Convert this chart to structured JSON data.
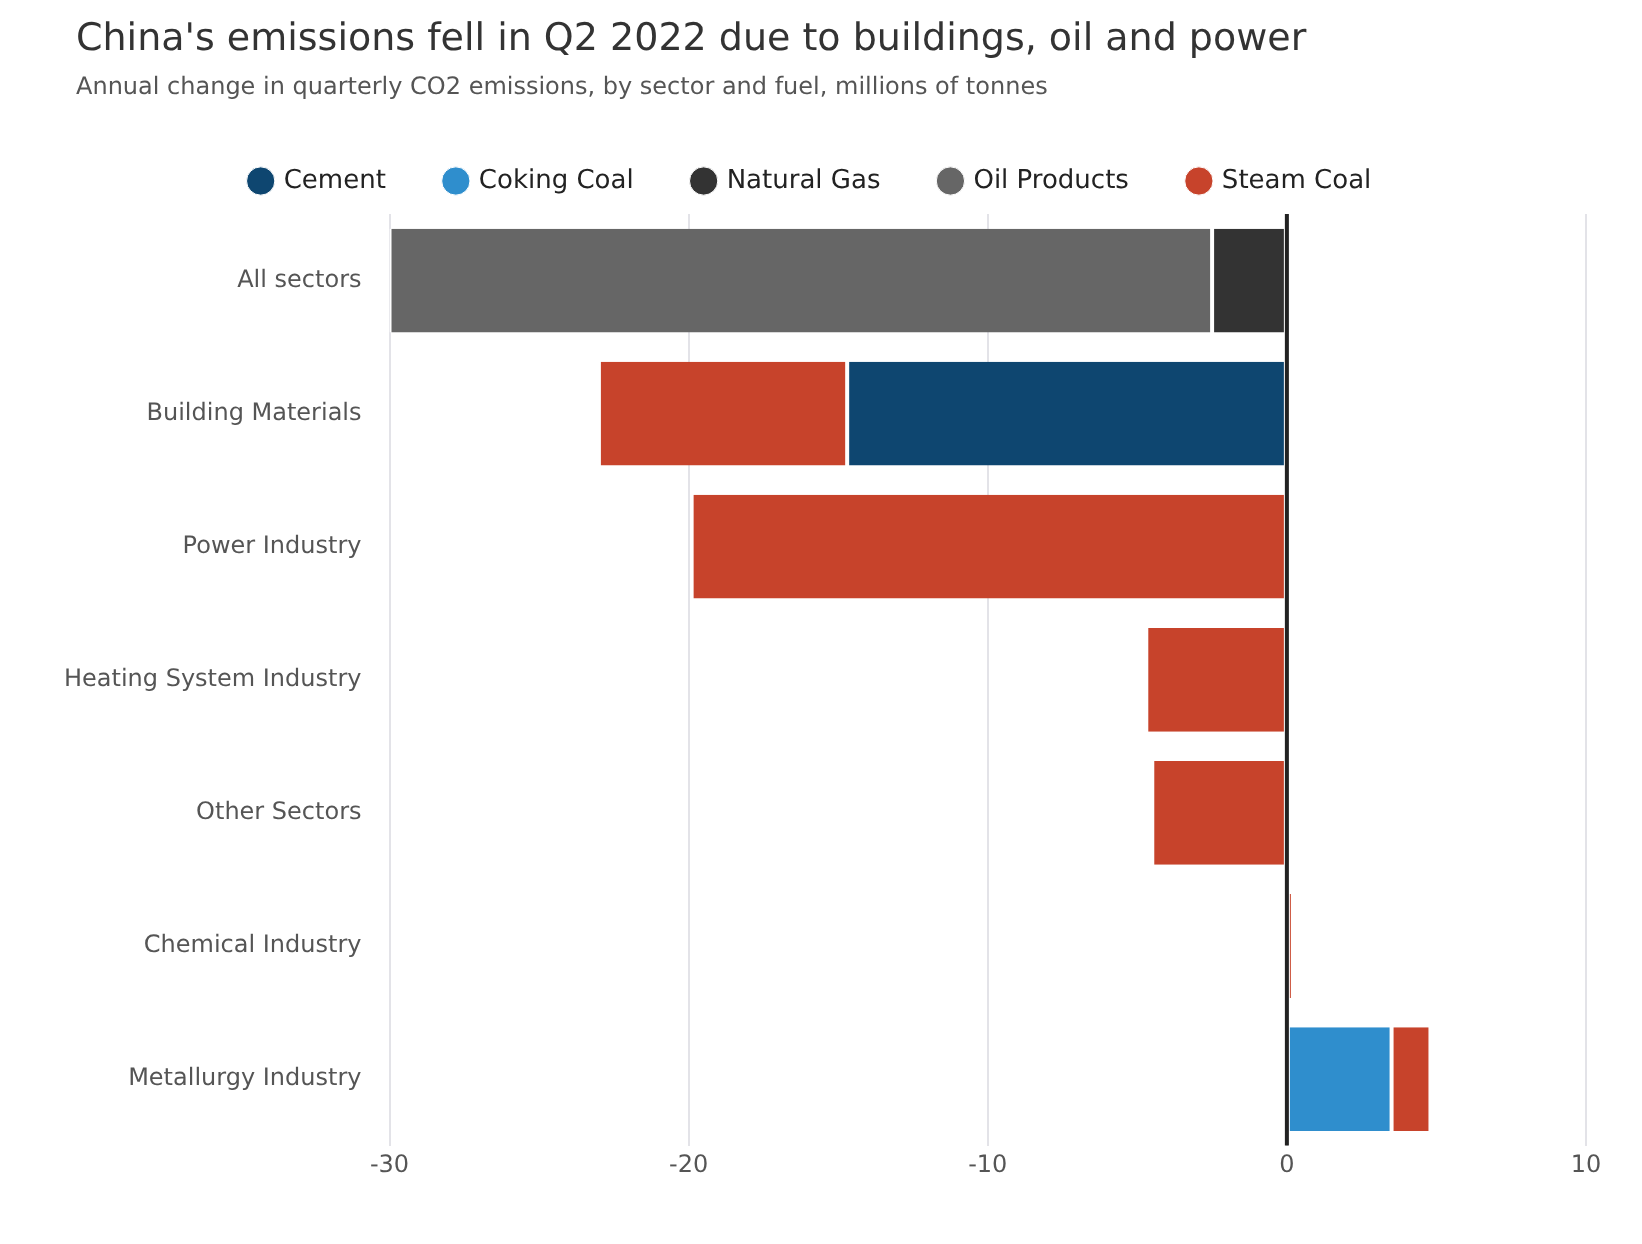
{
  "chart_data": {
    "type": "bar",
    "orientation": "horizontal",
    "stacked": true,
    "title": "China's emissions fell in Q2 2022 due to buildings, oil and power",
    "subtitle": "Annual change in quarterly CO2 emissions, by sector and fuel, millions of tonnes",
    "categories": [
      "All sectors",
      "Building Materials",
      "Power Industry",
      "Heating System Industry",
      "Other Sectors",
      "Chemical Industry",
      "Metallurgy Industry"
    ],
    "series": [
      {
        "name": "Cement",
        "color": "#0e4670",
        "values": [
          null,
          -14.7,
          null,
          null,
          null,
          null,
          null
        ]
      },
      {
        "name": "Coking Coal",
        "color": "#2f8ecd",
        "values": [
          null,
          null,
          null,
          null,
          null,
          null,
          3.5
        ]
      },
      {
        "name": "Natural Gas",
        "color": "#333333",
        "values": [
          -2.5,
          null,
          null,
          null,
          null,
          null,
          null
        ]
      },
      {
        "name": "Oil Products",
        "color": "#666666",
        "values": [
          -27.5,
          null,
          null,
          null,
          null,
          null,
          null
        ]
      },
      {
        "name": "Steam Coal",
        "color": "#c7432b",
        "values": [
          null,
          -8.3,
          -19.9,
          -4.7,
          -4.5,
          0.2,
          1.3
        ]
      }
    ],
    "xlim": [
      -30,
      10
    ],
    "xticks": [
      -30,
      -20,
      -10,
      0,
      10
    ],
    "grid": "x",
    "legend": "top"
  }
}
